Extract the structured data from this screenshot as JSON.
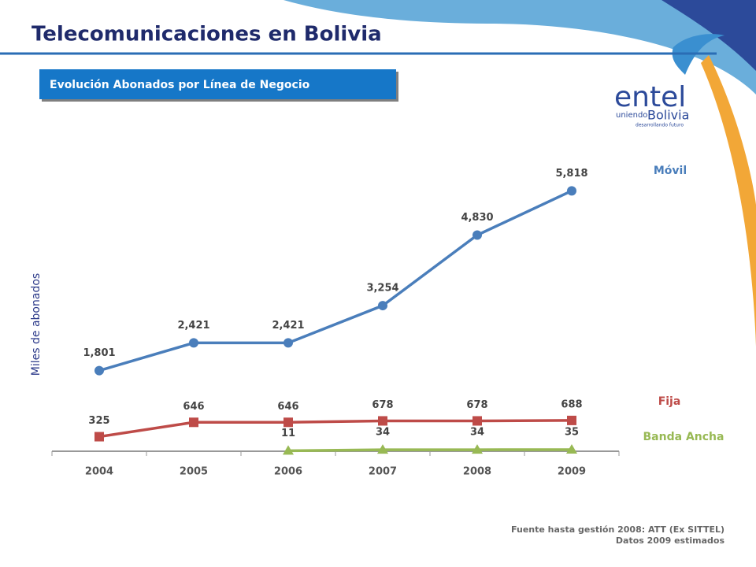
{
  "slide": {
    "title": "Telecomunicaciones en Bolivia",
    "subtitle": "Evolución Abonados por Línea de Negocio",
    "logo": {
      "brand": "entel",
      "tagline_1": "uniendo",
      "tagline_2": "Bolivia",
      "tagline_3": "desarrollando futuro"
    },
    "source": [
      "Fuente hasta gestión 2008: ATT (Ex SITTEL)",
      "Datos 2009 estimados"
    ]
  },
  "chart_data": {
    "type": "line",
    "ylabel": "Miles de abonados",
    "categories": [
      "2004",
      "2005",
      "2006",
      "2007",
      "2008",
      "2009"
    ],
    "ylim": [
      0,
      6000
    ],
    "series": [
      {
        "name": "Móvil",
        "color": "#4a7ebb",
        "marker": "circle",
        "values": [
          1801,
          2421,
          2421,
          3254,
          4830,
          5818
        ],
        "value_labels": [
          "1,801",
          "2,421",
          "2,421",
          "3,254",
          "4,830",
          "5,818"
        ]
      },
      {
        "name": "Fija",
        "color": "#be4b48",
        "marker": "square",
        "values": [
          325,
          646,
          646,
          678,
          678,
          688
        ]
      },
      {
        "name": "Banda Ancha",
        "color": "#98b954",
        "marker": "triangle",
        "values": [
          null,
          null,
          11,
          34,
          34,
          35
        ]
      }
    ]
  }
}
